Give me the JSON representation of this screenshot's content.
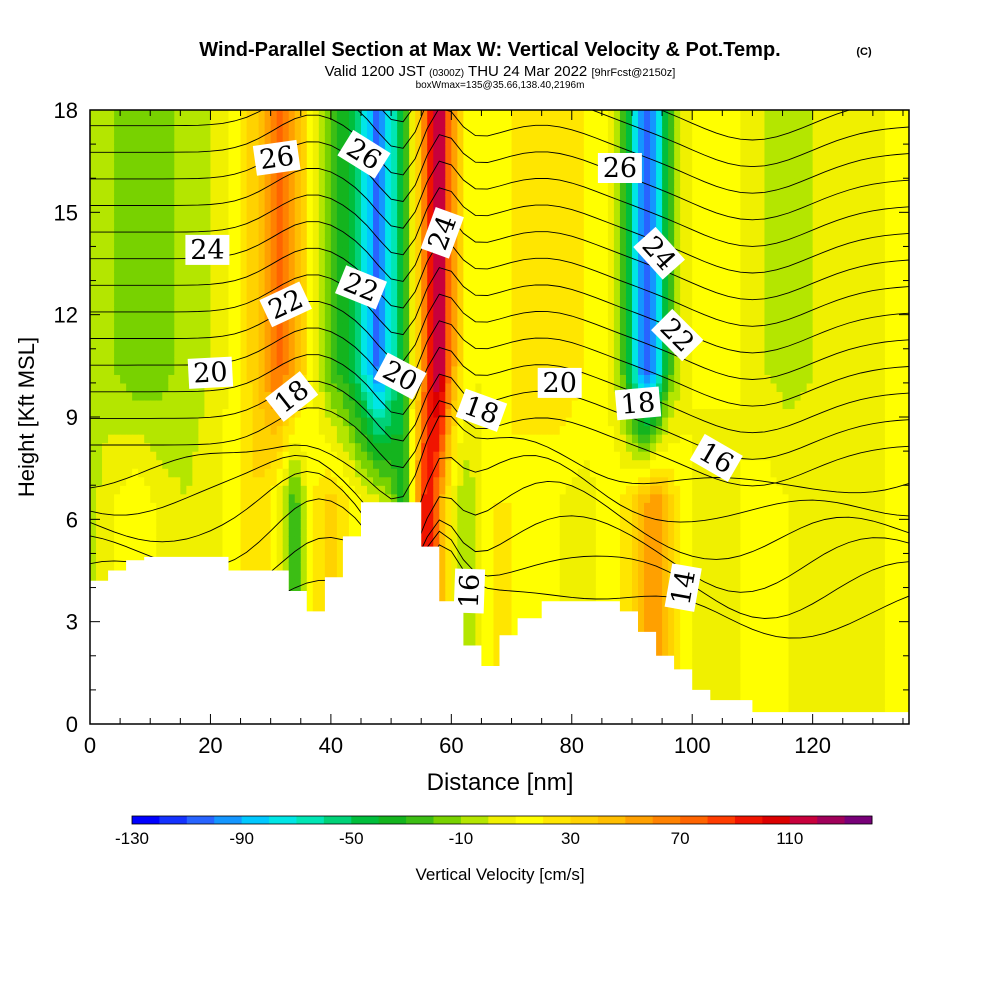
{
  "header": {
    "title": "Wind-Parallel Section at Max W: Vertical Velocity & Pot.Temp.",
    "title_mark": "(C)",
    "valid_prefix": "Valid 1200 JST",
    "valid_utc": "(0300Z)",
    "valid_date": "THU 24 Mar 2022",
    "forecast": "[9hrFcst@2150z]",
    "box_info": "boxWmax=135@35.66,138.40,2196m"
  },
  "chart_data": {
    "type": "heatmap",
    "xlabel": "Distance [nm]",
    "ylabel": "Height [Kft MSL]",
    "xlim": [
      0,
      136
    ],
    "ylim": [
      0,
      18
    ],
    "x_ticks": [
      "0",
      "20",
      "40",
      "60",
      "80",
      "100",
      "120"
    ],
    "x_tick_values": [
      0,
      20,
      40,
      60,
      80,
      100,
      120
    ],
    "y_ticks": [
      "0",
      "3",
      "6",
      "9",
      "12",
      "15",
      "18"
    ],
    "y_tick_values": [
      0,
      3,
      6,
      9,
      12,
      15,
      18
    ],
    "grid": false,
    "colorbar": {
      "label": "Vertical Velocity [cm/s]",
      "tick_labels": [
        "-130",
        "-90",
        "-50",
        "-10",
        "30",
        "70",
        "110"
      ],
      "tick_values": [
        -130,
        -90,
        -50,
        -10,
        30,
        70,
        110
      ],
      "levels": [
        -130,
        -120,
        -110,
        -100,
        -90,
        -80,
        -70,
        -60,
        -50,
        -40,
        -30,
        -20,
        -10,
        0,
        10,
        20,
        30,
        40,
        50,
        60,
        70,
        80,
        90,
        100,
        110,
        120,
        130
      ],
      "colors": [
        "#0000ff",
        "#1432ff",
        "#2864ff",
        "#1496ff",
        "#00c8ff",
        "#00e6e6",
        "#00e6b4",
        "#00d278",
        "#00be3c",
        "#14b41e",
        "#3cbe14",
        "#78d200",
        "#b4e600",
        "#f0f000",
        "#ffff00",
        "#ffe600",
        "#ffd200",
        "#ffbe00",
        "#ffa000",
        "#ff8200",
        "#ff6400",
        "#ff3c00",
        "#f01400",
        "#dc0000",
        "#c8003c",
        "#a0005a",
        "#780078"
      ]
    },
    "velocity_columns": {
      "x": [
        0,
        4,
        8,
        12,
        16,
        20,
        24,
        28,
        31,
        34,
        37,
        40,
        43,
        46,
        48,
        50,
        52,
        54,
        56,
        58,
        60,
        62,
        64,
        67,
        70,
        74,
        78,
        82,
        86,
        88,
        90,
        92,
        94,
        96,
        98,
        100,
        104,
        108,
        112,
        116,
        120,
        124,
        128,
        132,
        136
      ],
      "upper_w": [
        0,
        -10,
        -20,
        -15,
        -5,
        0,
        15,
        40,
        75,
        55,
        10,
        -25,
        -40,
        -80,
        -110,
        -70,
        -40,
        20,
        80,
        130,
        60,
        20,
        10,
        15,
        20,
        25,
        30,
        20,
        10,
        -10,
        -60,
        -110,
        -90,
        -30,
        0,
        10,
        15,
        10,
        0,
        -5,
        0,
        5,
        5,
        10,
        10
      ],
      "lower_w": [
        -5,
        10,
        20,
        5,
        0,
        5,
        15,
        30,
        10,
        -30,
        20,
        35,
        20,
        10,
        5,
        -10,
        -40,
        40,
        110,
        60,
        10,
        -10,
        0,
        20,
        20,
        15,
        10,
        5,
        15,
        20,
        30,
        50,
        60,
        40,
        20,
        10,
        0,
        10,
        15,
        10,
        5,
        0,
        5,
        10,
        10
      ],
      "transition_height": 8.5
    },
    "terrain": {
      "x": [
        0,
        3,
        3,
        6,
        6,
        9,
        9,
        23,
        23,
        33,
        33,
        36,
        36,
        39,
        39,
        42,
        42,
        45,
        45,
        48,
        48,
        55,
        55,
        58,
        58,
        62,
        62,
        65,
        65,
        68,
        68,
        71,
        71,
        75,
        75,
        88,
        88,
        91,
        91,
        94,
        94,
        97,
        97,
        100,
        100,
        103,
        103,
        110,
        110,
        136
      ],
      "y": [
        4.2,
        4.2,
        4.5,
        4.5,
        4.8,
        4.8,
        4.9,
        4.9,
        4.5,
        4.5,
        3.9,
        3.9,
        3.3,
        3.3,
        4.3,
        4.3,
        5.5,
        5.5,
        6.5,
        6.5,
        6.5,
        6.5,
        5.2,
        5.2,
        3.6,
        3.6,
        2.3,
        2.3,
        1.7,
        1.7,
        2.6,
        2.6,
        3.1,
        3.1,
        3.6,
        3.6,
        3.3,
        3.3,
        2.7,
        2.7,
        2.0,
        2.0,
        1.6,
        1.6,
        1.0,
        1.0,
        0.7,
        0.7,
        0.35,
        0.35
      ]
    },
    "theta_contour_labels": [
      {
        "text": "26",
        "x": 31,
        "y": 16.6,
        "angle": -8
      },
      {
        "text": "26",
        "x": 45.5,
        "y": 16.7,
        "angle": 32
      },
      {
        "text": "26",
        "x": 88,
        "y": 16.3,
        "angle": 0
      },
      {
        "text": "24",
        "x": 19.5,
        "y": 13.9,
        "angle": 0
      },
      {
        "text": "24",
        "x": 58.5,
        "y": 14.4,
        "angle": -70
      },
      {
        "text": "24",
        "x": 94.5,
        "y": 13.8,
        "angle": 48
      },
      {
        "text": "22",
        "x": 32.5,
        "y": 12.3,
        "angle": -25
      },
      {
        "text": "22",
        "x": 45,
        "y": 12.8,
        "angle": 22
      },
      {
        "text": "22",
        "x": 97.5,
        "y": 11.4,
        "angle": 45
      },
      {
        "text": "20",
        "x": 20,
        "y": 10.3,
        "angle": -3
      },
      {
        "text": "20",
        "x": 51.5,
        "y": 10.2,
        "angle": 28
      },
      {
        "text": "20",
        "x": 78,
        "y": 10.0,
        "angle": 0
      },
      {
        "text": "18",
        "x": 33.5,
        "y": 9.6,
        "angle": -38
      },
      {
        "text": "18",
        "x": 65,
        "y": 9.2,
        "angle": 20
      },
      {
        "text": "18",
        "x": 91,
        "y": 9.4,
        "angle": -5
      },
      {
        "text": "16",
        "x": 104,
        "y": 7.8,
        "angle": 30
      },
      {
        "text": "16",
        "x": 63,
        "y": 3.9,
        "angle": -88
      },
      {
        "text": "14",
        "x": 98.5,
        "y": 4.0,
        "angle": -80
      }
    ]
  }
}
